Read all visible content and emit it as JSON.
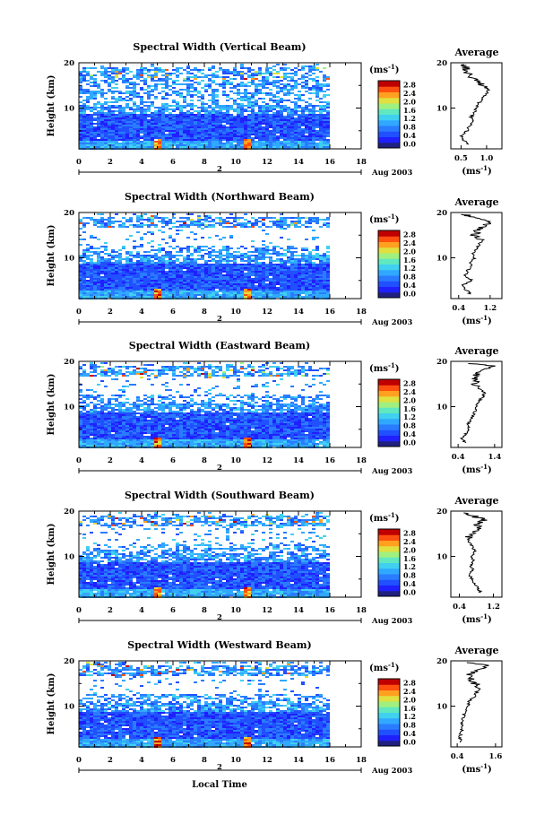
{
  "colorbar_ticks": [
    "0.0",
    "0.4",
    "0.8",
    "1.2",
    "1.6",
    "2.0",
    "2.4",
    "2.8"
  ],
  "colorbar_unit": "(ms",
  "colorbar_unit_exp": "-1",
  "colorbar_unit_close": ")",
  "date_label": "Aug 2003",
  "date_day": "2",
  "xlabel_bottom": "Local Time",
  "height_label": "Height (km)",
  "avg_title": "Average",
  "colors": {
    "scale": [
      "#202080",
      "#2020ff",
      "#2050ff",
      "#2a7cff",
      "#30a8ff",
      "#40d0f0",
      "#60e8c0",
      "#a0f080",
      "#e0e040",
      "#ffa020",
      "#ff5010",
      "#c00000"
    ]
  },
  "chart_data": [
    {
      "type": "heatmap",
      "title": "Spectral Width (Vertical Beam)",
      "x_ticks": [
        "0",
        "2",
        "4",
        "6",
        "8",
        "10",
        "12",
        "14",
        "16",
        "18"
      ],
      "y_ticks": [
        "10",
        "20"
      ],
      "xlim": [
        0,
        18
      ],
      "ylim": [
        1,
        20
      ],
      "data_end_hour": 16,
      "avg": {
        "title": "Average",
        "x_ticks": [
          "0.5",
          "1.0"
        ],
        "xlim": [
          0.3,
          1.3
        ],
        "profile": [
          [
            2,
            0.62
          ],
          [
            3,
            0.55
          ],
          [
            4,
            0.5
          ],
          [
            5,
            0.62
          ],
          [
            6,
            0.66
          ],
          [
            7,
            0.72
          ],
          [
            8,
            0.7
          ],
          [
            9,
            0.76
          ],
          [
            10,
            0.8
          ],
          [
            11,
            0.84
          ],
          [
            12,
            0.92
          ],
          [
            13,
            0.98
          ],
          [
            14,
            1.04
          ],
          [
            15,
            0.92
          ],
          [
            16,
            0.78
          ],
          [
            17,
            0.68
          ],
          [
            18,
            0.62
          ],
          [
            19,
            0.58
          ],
          [
            19.6,
            0.56
          ]
        ]
      }
    },
    {
      "type": "heatmap",
      "title": "Spectral Width (Northward Beam)",
      "x_ticks": [
        "0",
        "2",
        "4",
        "6",
        "8",
        "10",
        "12",
        "14",
        "16",
        "18"
      ],
      "y_ticks": [
        "10",
        "20"
      ],
      "xlim": [
        0,
        18
      ],
      "ylim": [
        1,
        20
      ],
      "data_end_hour": 16,
      "avg": {
        "title": "Average",
        "x_ticks": [
          "0.4",
          "1.2"
        ],
        "xlim": [
          0.2,
          1.5
        ],
        "profile": [
          [
            2,
            0.7
          ],
          [
            3,
            0.58
          ],
          [
            4,
            0.52
          ],
          [
            5,
            0.74
          ],
          [
            6,
            0.56
          ],
          [
            7,
            0.62
          ],
          [
            8,
            0.7
          ],
          [
            9,
            0.72
          ],
          [
            10,
            0.8
          ],
          [
            11,
            0.78
          ],
          [
            12,
            0.86
          ],
          [
            13,
            0.92
          ],
          [
            14,
            1.0
          ],
          [
            15,
            0.82
          ],
          [
            16,
            0.9
          ],
          [
            17,
            1.0
          ],
          [
            18,
            1.2
          ],
          [
            19,
            0.8
          ],
          [
            19.6,
            0.5
          ]
        ]
      }
    },
    {
      "type": "heatmap",
      "title": "Spectral Width (Eastward Beam)",
      "x_ticks": [
        "0",
        "2",
        "4",
        "6",
        "8",
        "10",
        "12",
        "14",
        "16",
        "18"
      ],
      "y_ticks": [
        "10",
        "20"
      ],
      "xlim": [
        0,
        18
      ],
      "ylim": [
        1,
        20
      ],
      "data_end_hour": 16,
      "avg": {
        "title": "Average",
        "x_ticks": [
          "0.4",
          "1.4"
        ],
        "xlim": [
          0.2,
          1.6
        ],
        "profile": [
          [
            2,
            0.58
          ],
          [
            3,
            0.5
          ],
          [
            4,
            0.6
          ],
          [
            5,
            0.7
          ],
          [
            6,
            0.66
          ],
          [
            7,
            0.74
          ],
          [
            8,
            0.8
          ],
          [
            9,
            0.86
          ],
          [
            10,
            0.92
          ],
          [
            11,
            0.94
          ],
          [
            12,
            1.06
          ],
          [
            13,
            1.12
          ],
          [
            14,
            0.96
          ],
          [
            15,
            0.84
          ],
          [
            16,
            0.9
          ],
          [
            17,
            0.88
          ],
          [
            18,
            1.1
          ],
          [
            19,
            1.3
          ],
          [
            19.6,
            0.7
          ]
        ]
      }
    },
    {
      "type": "heatmap",
      "title": "Spectral Width (Southward Beam)",
      "x_ticks": [
        "0",
        "2",
        "4",
        "6",
        "8",
        "10",
        "12",
        "14",
        "16",
        "18"
      ],
      "y_ticks": [
        "10",
        "20"
      ],
      "xlim": [
        0,
        18
      ],
      "ylim": [
        1,
        20
      ],
      "data_end_hour": 16,
      "avg": {
        "title": "Average",
        "x_ticks": [
          "0.4",
          "1.2"
        ],
        "xlim": [
          0.2,
          1.4
        ],
        "profile": [
          [
            2,
            0.9
          ],
          [
            3,
            0.84
          ],
          [
            4,
            0.74
          ],
          [
            5,
            0.7
          ],
          [
            6,
            0.62
          ],
          [
            7,
            0.72
          ],
          [
            8,
            0.66
          ],
          [
            9,
            0.74
          ],
          [
            10,
            0.7
          ],
          [
            11,
            0.76
          ],
          [
            12,
            0.72
          ],
          [
            13,
            0.64
          ],
          [
            14,
            0.6
          ],
          [
            15,
            0.72
          ],
          [
            16,
            0.88
          ],
          [
            17,
            0.84
          ],
          [
            18,
            1.0
          ],
          [
            19,
            0.7
          ],
          [
            19.6,
            0.5
          ]
        ]
      }
    },
    {
      "type": "heatmap",
      "title": "Spectral Width (Westward Beam)",
      "x_ticks": [
        "0",
        "2",
        "4",
        "6",
        "8",
        "10",
        "12",
        "14",
        "16",
        "18"
      ],
      "y_ticks": [
        "10",
        "20"
      ],
      "xlim": [
        0,
        18
      ],
      "ylim": [
        1,
        20
      ],
      "data_end_hour": 16,
      "avg": {
        "title": "Average",
        "x_ticks": [
          "0.4",
          "1.6"
        ],
        "xlim": [
          0.2,
          1.8
        ],
        "profile": [
          [
            2,
            0.52
          ],
          [
            3,
            0.48
          ],
          [
            4,
            0.52
          ],
          [
            5,
            0.56
          ],
          [
            6,
            0.54
          ],
          [
            7,
            0.58
          ],
          [
            8,
            0.62
          ],
          [
            9,
            0.66
          ],
          [
            10,
            0.74
          ],
          [
            11,
            0.78
          ],
          [
            12,
            0.92
          ],
          [
            13,
            1.0
          ],
          [
            14,
            1.1
          ],
          [
            15,
            0.96
          ],
          [
            16,
            0.88
          ],
          [
            17,
            0.82
          ],
          [
            18,
            1.0
          ],
          [
            19,
            1.5
          ],
          [
            19.6,
            0.7
          ]
        ]
      }
    }
  ]
}
